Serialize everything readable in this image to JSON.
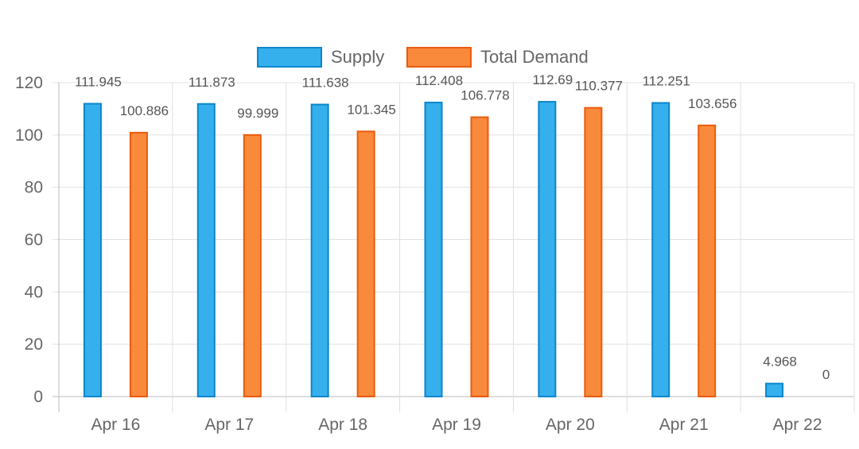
{
  "chart_data": {
    "type": "bar",
    "categories": [
      "Apr 16",
      "Apr 17",
      "Apr 18",
      "Apr 19",
      "Apr 20",
      "Apr 21",
      "Apr 22"
    ],
    "series": [
      {
        "name": "Supply",
        "values": [
          111.945,
          111.873,
          111.638,
          112.408,
          112.69,
          112.251,
          4.968
        ],
        "color": "#36b0ec",
        "border": "#0a86cc"
      },
      {
        "name": "Total Demand",
        "values": [
          100.886,
          99.999,
          101.345,
          106.778,
          110.377,
          103.656,
          0
        ],
        "color": "#f98a3c",
        "border": "#ea5b0c"
      }
    ],
    "ylim": [
      0,
      120
    ],
    "yticks": [
      0,
      20,
      40,
      60,
      80,
      100,
      120
    ],
    "grid": true,
    "legend": "top",
    "data_labels": true
  }
}
